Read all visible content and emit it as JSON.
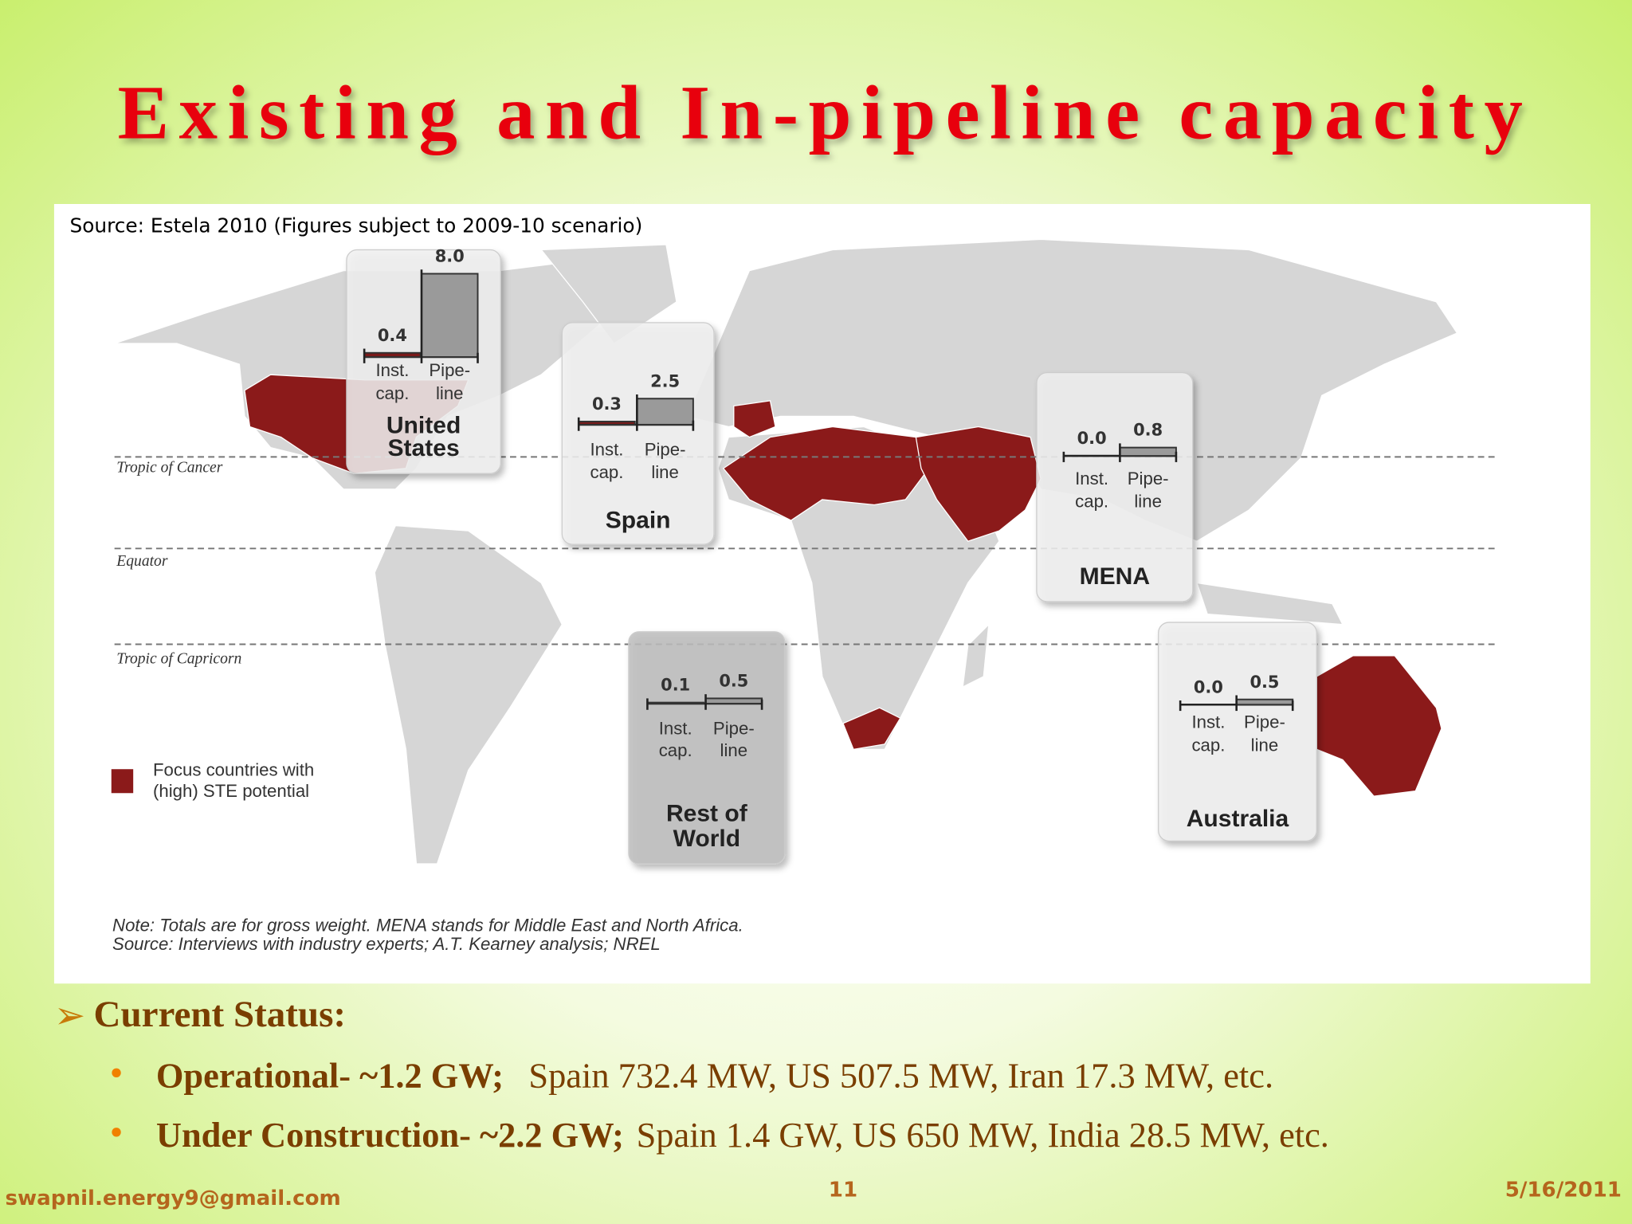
{
  "title": "Existing and In-pipeline capacity",
  "source": "Source: Estela 2010 (Figures subject to 2009-10 scenario)",
  "map": {
    "lines": [
      "Tropic of Cancer",
      "Equator",
      "Tropic of Capricorn"
    ],
    "bar_labels": [
      [
        "Inst.",
        "cap."
      ],
      [
        "Pipe-",
        "line"
      ]
    ],
    "regions": [
      {
        "name": [
          "United",
          "States"
        ],
        "values": [
          0.4,
          8.0
        ],
        "value_labels": [
          "0.4",
          "8.0"
        ]
      },
      {
        "name": [
          "Spain"
        ],
        "values": [
          0.3,
          2.5
        ],
        "value_labels": [
          "0.3",
          "2.5"
        ]
      },
      {
        "name": [
          "MENA"
        ],
        "values": [
          0.0,
          0.8
        ],
        "value_labels": [
          "0.0",
          "0.8"
        ]
      },
      {
        "name": [
          "Rest of",
          "World"
        ],
        "values": [
          0.1,
          0.5
        ],
        "value_labels": [
          "0.1",
          "0.5"
        ]
      },
      {
        "name": [
          "Australia"
        ],
        "values": [
          0.0,
          0.5
        ],
        "value_labels": [
          "0.0",
          "0.5"
        ]
      }
    ],
    "legend": [
      "Focus countries with",
      "(high) STE potential"
    ],
    "note": [
      "Note: Totals are for gross weight. MENA stands for Middle East and North Africa.",
      "Source: Interviews with industry experts; A.T. Kearney analysis; NREL"
    ]
  },
  "status": {
    "heading": "Current Status:",
    "bullets": [
      {
        "label": "Operational- ~1.2 GW;",
        "text": "Spain 732.4 MW, US 507.5 MW, Iran 17.3 MW, etc."
      },
      {
        "label": "Under Construction- ~2.2 GW;",
        "text": "Spain 1.4 GW, US 650 MW, India 28.5 MW, etc."
      }
    ]
  },
  "footer": {
    "email": "swapnil.energy9@gmail.com",
    "page": "11",
    "date": "5/16/2011"
  }
}
